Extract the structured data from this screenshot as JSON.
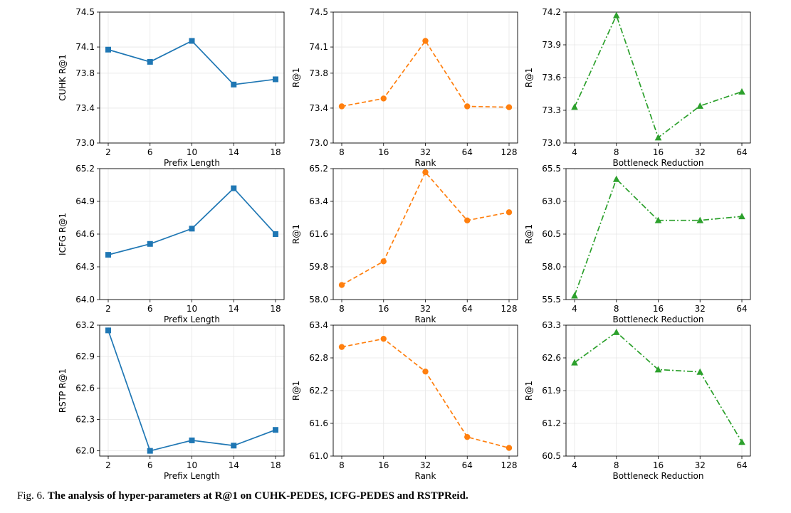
{
  "chart_data": [
    {
      "type": "line",
      "title": "",
      "xlabel": "Prefix Length",
      "ylabel": "CUHK R@1",
      "categories": [
        "2",
        "6",
        "10",
        "14",
        "18"
      ],
      "series": [
        {
          "name": "CUHK R@1",
          "values": [
            74.07,
            73.93,
            74.17,
            73.67,
            73.73
          ]
        }
      ],
      "ylim": [
        73.0,
        74.5
      ],
      "yticks": [
        "73.0",
        "73.4",
        "73.8",
        "74.1",
        "74.5"
      ],
      "color": "#1f77b4",
      "marker": "square",
      "line_style": "solid",
      "grid": true
    },
    {
      "type": "line",
      "title": "",
      "xlabel": "Rank",
      "ylabel": "R@1",
      "categories": [
        "8",
        "16",
        "32",
        "64",
        "128"
      ],
      "series": [
        {
          "name": "R@1",
          "values": [
            73.42,
            73.51,
            74.17,
            73.42,
            73.41
          ]
        }
      ],
      "ylim": [
        73.0,
        74.5
      ],
      "yticks": [
        "73.0",
        "73.4",
        "73.8",
        "74.1",
        "74.5"
      ],
      "color": "#ff7f0e",
      "marker": "circle",
      "line_style": "dashed",
      "grid": true
    },
    {
      "type": "line",
      "title": "",
      "xlabel": "Bottleneck Reduction",
      "ylabel": "R@1",
      "categories": [
        "4",
        "8",
        "16",
        "32",
        "64"
      ],
      "series": [
        {
          "name": "R@1",
          "values": [
            73.33,
            74.17,
            73.05,
            73.34,
            73.47
          ]
        }
      ],
      "ylim": [
        73.0,
        74.2
      ],
      "yticks": [
        "73.0",
        "73.3",
        "73.6",
        "73.9",
        "74.2"
      ],
      "color": "#2ca02c",
      "marker": "triangle",
      "line_style": "dashdot",
      "grid": true
    },
    {
      "type": "line",
      "title": "",
      "xlabel": "Prefix Length",
      "ylabel": "ICFG R@1",
      "categories": [
        "2",
        "6",
        "10",
        "14",
        "18"
      ],
      "series": [
        {
          "name": "ICFG R@1",
          "values": [
            64.41,
            64.51,
            64.65,
            65.02,
            64.6
          ]
        }
      ],
      "ylim": [
        64.0,
        65.2
      ],
      "yticks": [
        "64.0",
        "64.3",
        "64.6",
        "64.9",
        "65.2"
      ],
      "color": "#1f77b4",
      "marker": "square",
      "line_style": "solid",
      "grid": true
    },
    {
      "type": "line",
      "title": "",
      "xlabel": "Rank",
      "ylabel": "R@1",
      "categories": [
        "8",
        "16",
        "32",
        "64",
        "128"
      ],
      "series": [
        {
          "name": "R@1",
          "values": [
            58.8,
            60.1,
            65.0,
            62.35,
            62.8
          ]
        }
      ],
      "ylim": [
        58.0,
        65.2
      ],
      "yticks": [
        "58.0",
        "59.8",
        "61.6",
        "63.4",
        "65.2"
      ],
      "color": "#ff7f0e",
      "marker": "circle",
      "line_style": "dashed",
      "grid": true
    },
    {
      "type": "line",
      "title": "",
      "xlabel": "Bottleneck Reduction",
      "ylabel": "R@1",
      "categories": [
        "4",
        "8",
        "16",
        "32",
        "64"
      ],
      "series": [
        {
          "name": "R@1",
          "values": [
            55.8,
            64.7,
            61.55,
            61.55,
            61.85
          ]
        }
      ],
      "ylim": [
        55.5,
        65.5
      ],
      "yticks": [
        "55.5",
        "58.0",
        "60.5",
        "63.0",
        "65.5"
      ],
      "color": "#2ca02c",
      "marker": "triangle",
      "line_style": "dashdot",
      "grid": true
    },
    {
      "type": "line",
      "title": "",
      "xlabel": "Prefix Length",
      "ylabel": "RSTP R@1",
      "categories": [
        "2",
        "6",
        "10",
        "14",
        "18"
      ],
      "series": [
        {
          "name": "RSTP R@1",
          "values": [
            63.15,
            62.0,
            62.1,
            62.05,
            62.2
          ]
        }
      ],
      "ylim": [
        61.95,
        63.2
      ],
      "yticks": [
        "62.0",
        "62.3",
        "62.6",
        "62.9",
        "63.2"
      ],
      "color": "#1f77b4",
      "marker": "square",
      "line_style": "solid",
      "grid": true
    },
    {
      "type": "line",
      "title": "",
      "xlabel": "Rank",
      "ylabel": "R@1",
      "categories": [
        "8",
        "16",
        "32",
        "64",
        "128"
      ],
      "series": [
        {
          "name": "R@1",
          "values": [
            63.0,
            63.15,
            62.55,
            61.35,
            61.15
          ]
        }
      ],
      "ylim": [
        61.0,
        63.4
      ],
      "yticks": [
        "61.0",
        "61.6",
        "62.2",
        "62.8",
        "63.4"
      ],
      "color": "#ff7f0e",
      "marker": "circle",
      "line_style": "dashed",
      "grid": true
    },
    {
      "type": "line",
      "title": "",
      "xlabel": "Bottleneck Reduction",
      "ylabel": "R@1",
      "categories": [
        "4",
        "8",
        "16",
        "32",
        "64"
      ],
      "series": [
        {
          "name": "R@1",
          "values": [
            62.5,
            63.15,
            62.35,
            62.3,
            60.8
          ]
        }
      ],
      "ylim": [
        60.5,
        63.3
      ],
      "yticks": [
        "60.5",
        "61.2",
        "61.9",
        "62.6",
        "63.3"
      ],
      "color": "#2ca02c",
      "marker": "triangle",
      "line_style": "dashdot",
      "grid": true
    }
  ],
  "caption": {
    "label": "Fig. 6.",
    "text": "The analysis of hyper-parameters at R@1 on CUHK-PEDES, ICFG-PEDES and RSTPReid."
  }
}
